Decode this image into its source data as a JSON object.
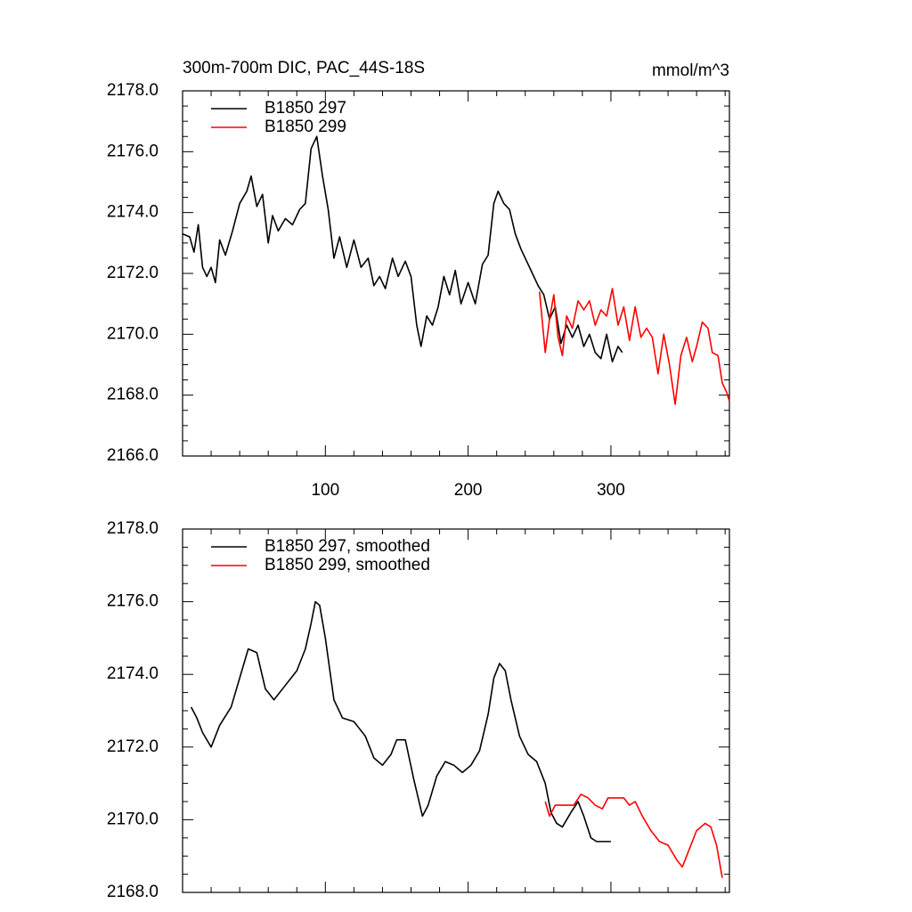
{
  "chart_data": [
    {
      "type": "line",
      "title": "300m-700m DIC, PAC_44S-18S",
      "right_title": "mmol/m^3",
      "xlim": [
        0,
        383
      ],
      "xticks": [
        100,
        200,
        300
      ],
      "ylim": [
        2166,
        2178
      ],
      "yticks": [
        {
          "value": 2166,
          "label": "2166.0"
        },
        {
          "value": 2168,
          "label": "2168.0"
        },
        {
          "value": 2170,
          "label": "2170.0"
        },
        {
          "value": 2172,
          "label": "2172.0"
        },
        {
          "value": 2174,
          "label": "2174.0"
        },
        {
          "value": 2176,
          "label": "2176.0"
        },
        {
          "value": 2178,
          "label": "2178.0"
        }
      ],
      "legend": "upper left",
      "series": [
        {
          "name": "B1850 297",
          "color": "#000000",
          "x": [
            0,
            5,
            8,
            11,
            14,
            17,
            20,
            23,
            26,
            30,
            35,
            40,
            45,
            48,
            52,
            56,
            60,
            63,
            67,
            72,
            77,
            82,
            86,
            90,
            94,
            98,
            102,
            106,
            110,
            115,
            120,
            125,
            130,
            134,
            138,
            142,
            147,
            151,
            156,
            160,
            164,
            167,
            171,
            175,
            179,
            183,
            187,
            191,
            195,
            200,
            205,
            210,
            214,
            218,
            221,
            225,
            229,
            233,
            237,
            241,
            245,
            249,
            253,
            257,
            261,
            265,
            269,
            273,
            277,
            281,
            285,
            289,
            293,
            297,
            301,
            305,
            308
          ],
          "values": [
            2173.3,
            2173.2,
            2172.7,
            2173.6,
            2172.2,
            2171.9,
            2172.2,
            2171.7,
            2173.1,
            2172.6,
            2173.4,
            2174.3,
            2174.7,
            2175.2,
            2174.2,
            2174.6,
            2173.0,
            2173.9,
            2173.4,
            2173.8,
            2173.6,
            2174.1,
            2174.3,
            2176.1,
            2176.5,
            2175.2,
            2174.1,
            2172.5,
            2173.2,
            2172.2,
            2173.1,
            2172.2,
            2172.5,
            2171.6,
            2171.9,
            2171.5,
            2172.5,
            2171.9,
            2172.4,
            2171.9,
            2170.3,
            2169.6,
            2170.6,
            2170.3,
            2170.9,
            2171.9,
            2171.3,
            2172.1,
            2171.0,
            2171.7,
            2171.0,
            2172.3,
            2172.6,
            2174.3,
            2174.7,
            2174.3,
            2174.1,
            2173.3,
            2172.8,
            2172.4,
            2172.0,
            2171.6,
            2171.3,
            2170.5,
            2170.9,
            2169.7,
            2170.3,
            2169.9,
            2170.3,
            2169.6,
            2170.0,
            2169.4,
            2169.2,
            2170.0,
            2169.1,
            2169.6,
            2169.4
          ]
        },
        {
          "name": "B1850 299",
          "color": "#ff0000",
          "x": [
            250,
            254,
            257,
            260,
            263,
            266,
            269,
            273,
            277,
            281,
            285,
            289,
            293,
            297,
            301,
            305,
            309,
            313,
            317,
            321,
            325,
            329,
            333,
            337,
            341,
            345,
            349,
            353,
            357,
            360,
            364,
            368,
            371,
            375,
            378,
            381,
            383
          ],
          "values": [
            2171.4,
            2169.4,
            2170.5,
            2171.3,
            2169.9,
            2169.3,
            2170.6,
            2170.2,
            2171.1,
            2170.8,
            2171.1,
            2170.3,
            2170.8,
            2170.6,
            2171.5,
            2170.3,
            2170.9,
            2169.8,
            2170.9,
            2169.9,
            2170.2,
            2169.9,
            2168.7,
            2170.0,
            2169.0,
            2167.7,
            2169.3,
            2169.9,
            2169.1,
            2169.6,
            2170.4,
            2170.2,
            2169.4,
            2169.3,
            2168.4,
            2168.1,
            2167.8
          ]
        }
      ]
    },
    {
      "type": "line",
      "xlim": [
        0,
        383
      ],
      "xticks": [
        100,
        200,
        300
      ],
      "ylim": [
        2168,
        2178
      ],
      "yticks": [
        {
          "value": 2168,
          "label": "2168.0"
        },
        {
          "value": 2170,
          "label": "2170.0"
        },
        {
          "value": 2172,
          "label": "2172.0"
        },
        {
          "value": 2174,
          "label": "2174.0"
        },
        {
          "value": 2176,
          "label": "2176.0"
        },
        {
          "value": 2178,
          "label": "2178.0"
        }
      ],
      "legend": "upper left",
      "series": [
        {
          "name": "B1850 297, smoothed",
          "color": "#000000",
          "x": [
            6,
            10,
            14,
            20,
            26,
            34,
            40,
            46,
            52,
            58,
            64,
            72,
            80,
            86,
            90,
            93,
            96,
            100,
            106,
            112,
            120,
            128,
            134,
            140,
            146,
            150,
            156,
            162,
            168,
            172,
            178,
            184,
            190,
            196,
            202,
            208,
            214,
            218,
            222,
            226,
            230,
            236,
            242,
            248,
            254,
            258,
            262,
            266,
            272,
            277,
            281,
            286,
            290,
            300
          ],
          "values": [
            2173.1,
            2172.8,
            2172.4,
            2172.0,
            2172.6,
            2173.1,
            2173.9,
            2174.7,
            2174.6,
            2173.6,
            2173.3,
            2173.7,
            2174.1,
            2174.7,
            2175.4,
            2176.0,
            2175.9,
            2175.0,
            2173.3,
            2172.8,
            2172.7,
            2172.3,
            2171.7,
            2171.5,
            2171.8,
            2172.2,
            2172.2,
            2171.1,
            2170.1,
            2170.4,
            2171.2,
            2171.6,
            2171.5,
            2171.3,
            2171.5,
            2171.9,
            2172.9,
            2173.9,
            2174.3,
            2174.1,
            2173.3,
            2172.3,
            2171.8,
            2171.6,
            2171.0,
            2170.2,
            2169.9,
            2169.8,
            2170.2,
            2170.5,
            2170.1,
            2169.5,
            2169.4,
            2169.4
          ]
        },
        {
          "name": "B1850 299, smoothed",
          "color": "#ff0000",
          "x": [
            254,
            257,
            261,
            266,
            270,
            274,
            279,
            284,
            289,
            294,
            298,
            303,
            309,
            313,
            317,
            322,
            328,
            334,
            340,
            346,
            350,
            355,
            360,
            366,
            370,
            374,
            378
          ],
          "values": [
            2170.5,
            2170.1,
            2170.4,
            2170.4,
            2170.4,
            2170.4,
            2170.7,
            2170.6,
            2170.4,
            2170.3,
            2170.6,
            2170.6,
            2170.6,
            2170.4,
            2170.5,
            2170.1,
            2169.7,
            2169.4,
            2169.3,
            2168.9,
            2168.7,
            2169.2,
            2169.7,
            2169.9,
            2169.8,
            2169.3,
            2168.4
          ]
        }
      ]
    }
  ]
}
